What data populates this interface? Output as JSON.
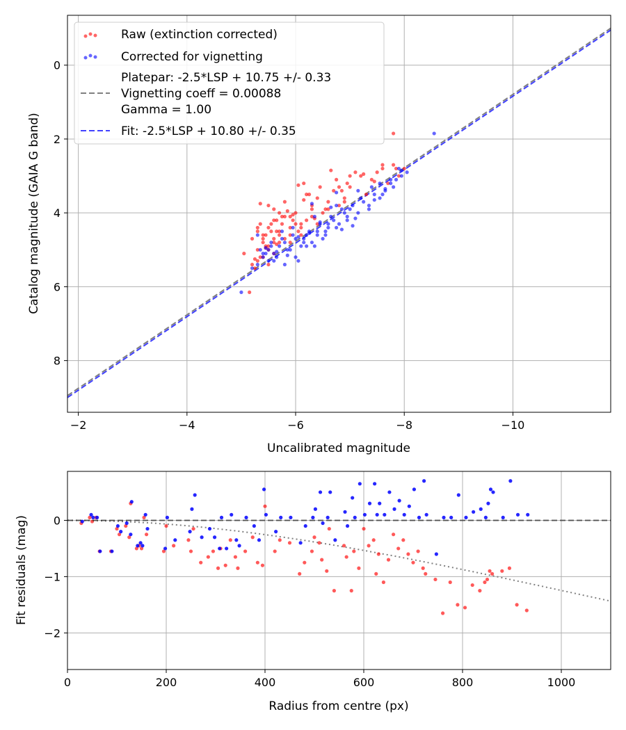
{
  "chart_data": [
    {
      "type": "scatter",
      "xlabel": "Uncalibrated magnitude",
      "ylabel": "Catalog magnitude (GAIA G band)",
      "xlim": [
        -1.8,
        -11.8
      ],
      "ylim": [
        9.4,
        -1.35
      ],
      "xticks": [
        -2,
        -4,
        -6,
        -8,
        -10
      ],
      "xtick_labels": [
        "−2",
        "−4",
        "−6",
        "−8",
        "−10"
      ],
      "yticks": [
        0,
        2,
        4,
        6,
        8
      ],
      "ytick_labels": [
        "0",
        "2",
        "4",
        "6",
        "8"
      ],
      "grid": true,
      "legend_position": "top-left",
      "legend": [
        {
          "label": "Raw (extinction corrected)",
          "kind": "marker",
          "color": "#ff0000"
        },
        {
          "label": "Corrected for vignetting",
          "kind": "marker",
          "color": "#0000ff"
        },
        {
          "label": [
            "Platepar: -2.5*LSP + 10.75 +/- 0.33",
            "Vignetting coeff = 0.00088",
            "Gamma = 1.00"
          ],
          "kind": "line",
          "color": "#808080"
        },
        {
          "label": "Fit: -2.5*LSP + 10.80 +/- 0.35",
          "kind": "line",
          "color": "#0000ff"
        }
      ],
      "lines": [
        {
          "name": "Platepar",
          "slope": -2.5,
          "intercept": 10.75,
          "color": "#808080",
          "x": [
            -1.8,
            -11.8
          ],
          "y": [
            8.95,
            -1.0
          ]
        },
        {
          "name": "Fit",
          "slope": -2.5,
          "intercept": 10.8,
          "color": "#0000ff",
          "x": [
            -1.8,
            -11.8
          ],
          "y": [
            9.0,
            -0.95
          ]
        }
      ],
      "series": [
        {
          "name": "Raw (extinction corrected)",
          "color": "#ff0000",
          "x": [
            -5.05,
            -5.2,
            -5.3,
            -5.35,
            -5.4,
            -5.45,
            -5.5,
            -5.55,
            -5.6,
            -5.3,
            -5.4,
            -5.5,
            -5.6,
            -5.7,
            -5.75,
            -5.8,
            -5.9,
            -5.95,
            -6.0,
            -6.05,
            -6.1,
            -5.5,
            -5.6,
            -5.65,
            -5.7,
            -5.8,
            -5.9,
            -6.0,
            -6.1,
            -6.2,
            -6.3,
            -5.2,
            -5.3,
            -5.4,
            -5.5,
            -5.6,
            -5.7,
            -5.8,
            -5.9,
            -5.25,
            -5.35,
            -5.45,
            -5.55,
            -5.65,
            -5.75,
            -6.2,
            -6.3,
            -6.4,
            -6.5,
            -6.6,
            -6.7,
            -6.8,
            -6.9,
            -7.0,
            -6.15,
            -6.25,
            -6.45,
            -6.55,
            -6.75,
            -6.85,
            -6.95,
            -7.1,
            -7.2,
            -7.3,
            -7.4,
            -7.5,
            -7.6,
            -7.7,
            -7.8,
            -7.85,
            -7.9,
            -8.0,
            -7.6,
            -7.0,
            -6.9,
            -6.8,
            -6.6,
            -6.3,
            -6.1,
            -5.9,
            -5.7,
            -5.6,
            -5.4,
            -5.3,
            -5.15,
            -5.35,
            -5.5,
            -5.85,
            -6.05,
            -7.8,
            -6.4,
            -6.65,
            -5.95,
            -5.45,
            -6.15,
            -7.25,
            -5.25,
            -7.45,
            -6.35,
            -5.65
          ],
          "y": [
            5.1,
            4.7,
            4.4,
            4.3,
            4.8,
            4.6,
            4.9,
            4.5,
            4.7,
            5.3,
            5.2,
            5.0,
            4.8,
            4.6,
            4.3,
            4.1,
            4.4,
            4.2,
            4.0,
            4.5,
            4.3,
            3.8,
            3.9,
            4.2,
            4.5,
            4.7,
            4.1,
            4.3,
            4.6,
            4.2,
            3.9,
            5.4,
            5.0,
            4.6,
            4.4,
            4.2,
            4.0,
            3.7,
            4.8,
            5.5,
            5.2,
            4.9,
            4.3,
            4.5,
            4.1,
            3.5,
            3.8,
            3.6,
            4.0,
            3.7,
            3.4,
            3.3,
            3.6,
            3.0,
            3.2,
            3.5,
            3.3,
            3.9,
            3.1,
            3.4,
            3.2,
            2.9,
            3.0,
            3.5,
            3.1,
            2.9,
            2.8,
            3.2,
            2.7,
            2.8,
            3.0,
            2.8,
            2.7,
            3.3,
            3.7,
            3.8,
            3.9,
            4.1,
            4.4,
            4.6,
            4.8,
            5.1,
            4.7,
            4.5,
            6.15,
            3.75,
            5.4,
            3.95,
            3.25,
            1.85,
            4.3,
            2.85,
            4.05,
            4.95,
            3.65,
            2.95,
            5.25,
            3.15,
            4.15,
            4.85
          ]
        },
        {
          "name": "Corrected for vignetting",
          "color": "#0000ff",
          "x": [
            -5.35,
            -5.4,
            -5.5,
            -5.6,
            -5.7,
            -5.8,
            -5.9,
            -6.0,
            -6.1,
            -6.2,
            -6.3,
            -6.4,
            -6.5,
            -6.6,
            -6.7,
            -6.8,
            -5.3,
            -5.45,
            -5.55,
            -5.65,
            -5.75,
            -5.85,
            -5.95,
            -6.05,
            -6.15,
            -6.25,
            -6.35,
            -6.45,
            -6.55,
            -6.65,
            -6.75,
            -6.85,
            -6.95,
            -7.05,
            -7.15,
            -7.25,
            -7.35,
            -7.45,
            -7.55,
            -7.65,
            -7.75,
            -7.85,
            -7.95,
            -8.05,
            -7.9,
            -7.8,
            -7.6,
            -7.4,
            -7.2,
            -7.0,
            -6.9,
            -6.6,
            -6.4,
            -6.2,
            -6.0,
            -5.8,
            -5.6,
            -5.5,
            -5.4,
            -5.2,
            -5.0,
            -5.3,
            -5.55,
            -5.75,
            -5.95,
            -6.15,
            -6.35,
            -6.55,
            -6.75,
            -6.95,
            -7.15,
            -7.35,
            -7.55,
            -7.75,
            -7.95,
            -8.55,
            -6.85,
            -6.45,
            -6.05,
            -5.65,
            -7.05,
            -7.65,
            -6.25,
            -5.85,
            -7.45,
            -6.65,
            -6.75,
            -7.1,
            -5.45,
            -6.3
          ],
          "y": [
            5.0,
            5.2,
            5.3,
            5.1,
            4.9,
            4.8,
            5.0,
            4.7,
            4.9,
            4.6,
            4.8,
            4.5,
            4.7,
            4.4,
            4.2,
            4.3,
            5.4,
            5.1,
            4.9,
            5.2,
            4.7,
            5.0,
            4.6,
            5.3,
            4.8,
            4.5,
            4.9,
            4.3,
            4.6,
            4.1,
            4.4,
            3.9,
            4.2,
            3.8,
            4.0,
            3.7,
            3.9,
            3.5,
            3.6,
            3.4,
            3.2,
            3.1,
            3.0,
            2.9,
            2.8,
            3.3,
            3.5,
            3.3,
            3.6,
            3.9,
            4.0,
            4.3,
            4.6,
            4.9,
            5.2,
            5.4,
            5.3,
            5.0,
            5.1,
            5.5,
            6.15,
            4.6,
            4.8,
            4.5,
            4.4,
            4.7,
            4.1,
            4.5,
            3.8,
            4.1,
            3.4,
            3.8,
            3.2,
            3.1,
            2.85,
            1.85,
            4.45,
            4.25,
            4.65,
            5.05,
            4.35,
            3.35,
            4.55,
            5.15,
            3.65,
            3.85,
            3.45,
            4.15,
            4.95,
            3.75
          ]
        }
      ]
    },
    {
      "type": "scatter",
      "xlabel": "Radius from centre (px)",
      "ylabel": "Fit residuals (mag)",
      "xlim": [
        0,
        1100
      ],
      "ylim": [
        -2.65,
        0.87
      ],
      "xticks": [
        0,
        200,
        400,
        600,
        800,
        1000
      ],
      "xtick_labels": [
        "0",
        "200",
        "400",
        "600",
        "800",
        "1000"
      ],
      "yticks": [
        0,
        -1,
        -2
      ],
      "ytick_labels": [
        "0",
        "−1",
        "−2"
      ],
      "grid": true,
      "reference_line": {
        "y": 0,
        "color": "#000000",
        "style": "dashed"
      },
      "vignetting_curve": {
        "coeff": 0.00088,
        "color": "#808080",
        "style": "dotted"
      },
      "series": [
        {
          "name": "Raw (extinction corrected)",
          "color": "#ff0000",
          "x": [
            28,
            45,
            50,
            58,
            65,
            88,
            100,
            105,
            118,
            125,
            128,
            140,
            145,
            150,
            155,
            160,
            195,
            200,
            215,
            245,
            250,
            255,
            270,
            285,
            295,
            305,
            310,
            320,
            330,
            340,
            345,
            360,
            375,
            385,
            395,
            400,
            420,
            430,
            450,
            470,
            480,
            495,
            500,
            510,
            515,
            525,
            530,
            540,
            560,
            565,
            575,
            580,
            590,
            600,
            610,
            620,
            625,
            630,
            640,
            650,
            660,
            670,
            680,
            690,
            700,
            710,
            720,
            725,
            745,
            760,
            775,
            790,
            805,
            820,
            835,
            845,
            850,
            855,
            860,
            880,
            895,
            910,
            930
          ],
          "y": [
            -0.05,
            0.05,
            -0.02,
            0.05,
            -0.55,
            -0.55,
            -0.15,
            -0.25,
            -0.1,
            -0.3,
            0.3,
            -0.5,
            -0.45,
            -0.5,
            0.05,
            -0.25,
            -0.55,
            -0.1,
            -0.45,
            -0.35,
            -0.55,
            -0.15,
            -0.75,
            -0.65,
            -0.55,
            -0.85,
            -0.5,
            -0.8,
            -0.35,
            -0.65,
            -0.85,
            -0.55,
            -0.3,
            -0.75,
            -0.8,
            0.25,
            -0.55,
            -0.35,
            -0.4,
            -0.95,
            -0.75,
            -0.55,
            -0.3,
            -0.4,
            -0.7,
            -0.9,
            -0.15,
            -1.25,
            -0.45,
            -0.65,
            -1.25,
            -0.55,
            -0.85,
            -0.15,
            -0.45,
            -0.35,
            -0.95,
            -0.6,
            -1.1,
            -0.7,
            -0.25,
            -0.5,
            -0.35,
            -0.6,
            -0.75,
            -0.55,
            -0.85,
            -0.95,
            -1.05,
            -1.65,
            -1.1,
            -1.5,
            -1.55,
            -1.15,
            -1.25,
            -1.1,
            -1.05,
            -0.9,
            -0.95,
            -0.9,
            -0.85,
            -1.5,
            -1.6
          ]
        },
        {
          "name": "Corrected for vignetting",
          "color": "#0000ff",
          "x": [
            30,
            48,
            52,
            60,
            66,
            90,
            102,
            108,
            120,
            128,
            130,
            142,
            148,
            152,
            158,
            162,
            198,
            202,
            218,
            248,
            252,
            258,
            272,
            288,
            298,
            308,
            312,
            322,
            332,
            342,
            348,
            362,
            378,
            388,
            398,
            402,
            422,
            432,
            452,
            472,
            482,
            497,
            502,
            512,
            517,
            527,
            532,
            542,
            562,
            567,
            577,
            582,
            592,
            602,
            612,
            622,
            627,
            632,
            642,
            652,
            662,
            672,
            682,
            692,
            702,
            712,
            722,
            727,
            747,
            762,
            777,
            792,
            807,
            822,
            837,
            847,
            852,
            857,
            862,
            882,
            897,
            912,
            932
          ],
          "y": [
            -0.02,
            0.1,
            0.05,
            0.05,
            -0.55,
            -0.55,
            -0.1,
            -0.2,
            -0.05,
            -0.25,
            0.33,
            -0.45,
            -0.4,
            -0.45,
            0.1,
            -0.15,
            -0.5,
            0.05,
            -0.35,
            -0.2,
            0.2,
            0.45,
            -0.3,
            -0.15,
            -0.3,
            -0.5,
            0.05,
            -0.5,
            0.1,
            -0.35,
            -0.45,
            0.05,
            -0.1,
            -0.35,
            0.55,
            0.1,
            -0.2,
            0.05,
            0.05,
            -0.4,
            -0.1,
            0.05,
            0.2,
            0.5,
            -0.05,
            0.05,
            0.5,
            -0.35,
            0.15,
            -0.1,
            0.4,
            0.05,
            0.65,
            0.1,
            0.3,
            0.65,
            0.1,
            0.3,
            0.1,
            0.5,
            0.2,
            0.35,
            0.1,
            0.25,
            0.55,
            0.05,
            0.7,
            0.1,
            -0.6,
            0.05,
            0.05,
            0.45,
            0.05,
            0.15,
            0.2,
            0.05,
            0.3,
            0.55,
            0.5,
            0.05,
            0.7,
            0.1,
            0.1
          ]
        }
      ]
    }
  ]
}
